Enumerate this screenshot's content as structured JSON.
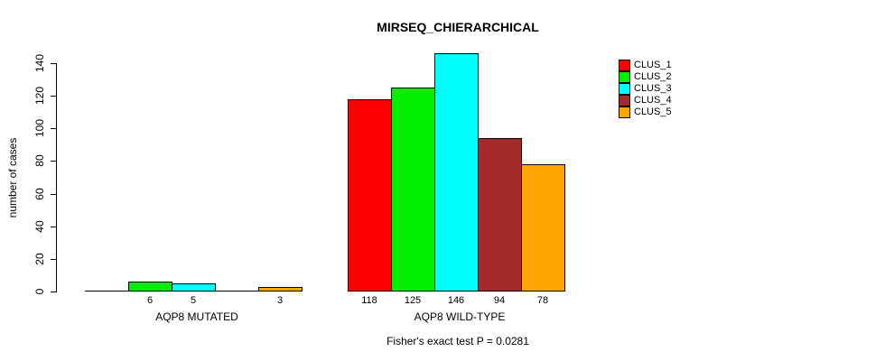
{
  "title": "MIRSEQ_CHIERARCHICAL",
  "footnote": "Fisher's exact test P = 0.0281",
  "chart_data": {
    "type": "bar",
    "title": "MIRSEQ_CHIERARCHICAL",
    "ylabel": "number of cases",
    "xlabel": "",
    "ylim": [
      0,
      140
    ],
    "yticks": [
      0,
      20,
      40,
      60,
      80,
      100,
      120,
      140
    ],
    "grid": false,
    "legend_position": "right",
    "categories": [
      "AQP8 MUTATED",
      "AQP8 WILD-TYPE"
    ],
    "series": [
      {
        "name": "CLUS_1",
        "color": "#FF0000",
        "values": [
          0,
          118
        ]
      },
      {
        "name": "CLUS_2",
        "color": "#00EE00",
        "values": [
          6,
          125
        ]
      },
      {
        "name": "CLUS_3",
        "color": "#00FFFF",
        "values": [
          5,
          146
        ]
      },
      {
        "name": "CLUS_4",
        "color": "#A52A2A",
        "values": [
          0,
          94
        ]
      },
      {
        "name": "CLUS_5",
        "color": "#FFA500",
        "values": [
          3,
          78
        ]
      }
    ],
    "bar_value_labels_shown_only_when_nonzero": true,
    "footnote": "Fisher's exact test P = 0.0281"
  }
}
